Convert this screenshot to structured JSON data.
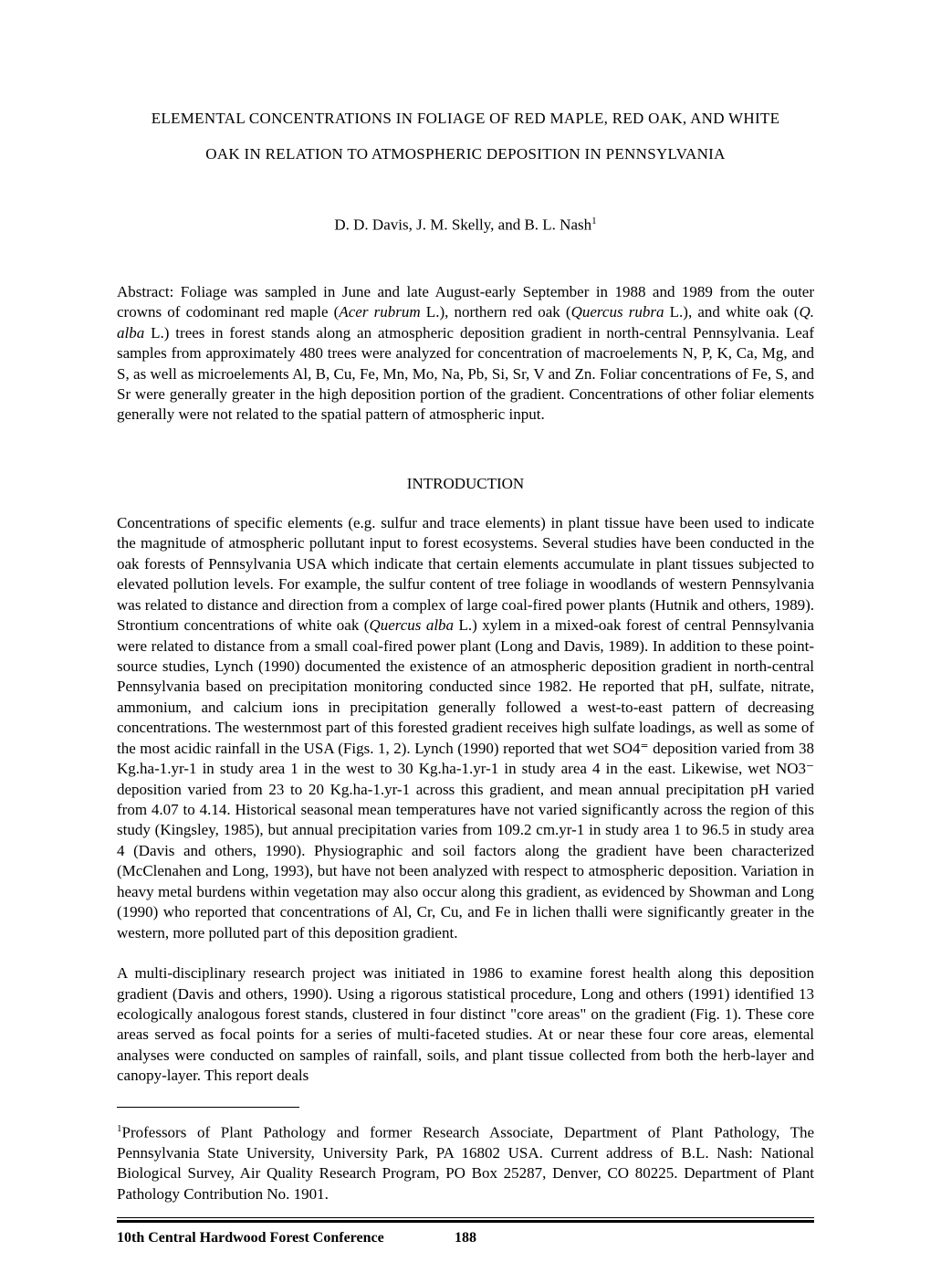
{
  "title": {
    "line1": "ELEMENTAL CONCENTRATIONS IN FOLIAGE OF RED MAPLE, RED OAK, AND WHITE",
    "line2": "OAK IN RELATION TO ATMOSPHERIC DEPOSITION IN PENNSYLVANIA"
  },
  "authors": {
    "text": "D. D. Davis, J. M. Skelly, and B. L. Nash",
    "sup": "1"
  },
  "abstract": {
    "label": "Abstract:",
    "pre_italic1": " Foliage was sampled in June and late August-early September in 1988 and 1989 from the outer crowns of codominant red maple (",
    "italic1": "Acer rubrum",
    "post_italic1": " L.), northern red oak (",
    "italic2": "Quercus rubra",
    "post_italic2": " L.), and white oak (",
    "italic3": "Q. alba",
    "post_italic3": " L.) trees in forest stands along an atmospheric deposition gradient in north-central Pennsylvania. Leaf samples from approximately 480 trees were analyzed for concentration of macroelements N, P, K, Ca, Mg, and S, as well as microelements Al, B, Cu, Fe, Mn, Mo, Na, Pb, Si, Sr, V and Zn. Foliar concentrations of Fe, S, and Sr were generally greater in the high deposition portion of the gradient. Concentrations of other foliar elements generally were not related to the spatial pattern of atmospheric input."
  },
  "section1": {
    "heading": "INTRODUCTION",
    "para1_a": "Concentrations of specific elements (e.g. sulfur and trace elements) in plant tissue have been used to indicate the magnitude of atmospheric pollutant input to forest ecosystems. Several studies have been conducted in the oak forests of Pennsylvania USA which indicate that certain elements accumulate in plant tissues subjected to elevated pollution levels. For example, the sulfur content of tree foliage in woodlands of western Pennsylvania was related to distance and direction from a complex of large coal-fired power plants (Hutnik and others, 1989). Strontium concentrations of white oak (",
    "para1_italic": "Quercus alba",
    "para1_b": " L.) xylem in a mixed-oak forest of central Pennsylvania were related to distance from a small coal-fired power plant (Long and Davis, 1989). In addition to these point-source studies, Lynch (1990) documented the existence of an atmospheric deposition gradient in north-central Pennsylvania based on precipitation monitoring conducted since 1982. He reported that pH, sulfate, nitrate, ammonium, and calcium ions in precipitation generally followed a west-to-east pattern of decreasing concentrations. The westernmost part of this forested gradient receives high sulfate loadings, as well as some of the most acidic rainfall in the USA (Figs. 1, 2). Lynch (1990) reported that wet SO4⁼ deposition varied from 38 Kg.ha-1.yr-1 in study area 1 in the west to 30 Kg.ha-1.yr-1 in study area 4 in the east. Likewise, wet NO3⁻ deposition varied from 23 to 20 Kg.ha-1.yr-1 across this gradient, and mean annual precipitation pH varied from 4.07 to 4.14. Historical seasonal mean temperatures have not varied significantly across the region of this study (Kingsley, 1985), but annual precipitation varies from 109.2 cm.yr-1 in study area 1 to 96.5 in study area 4 (Davis and others, 1990). Physiographic and soil factors along the gradient have been characterized (McClenahen and Long, 1993), but have not been analyzed with respect to atmospheric deposition. Variation in heavy metal burdens within vegetation may also occur along this gradient, as evidenced by Showman and Long (1990) who reported that concentrations of Al, Cr, Cu, and Fe in lichen thalli were significantly greater in the western, more polluted part of this deposition gradient.",
    "para2": "A multi-disciplinary research project was initiated in 1986 to examine forest health along this deposition gradient (Davis and others, 1990). Using a rigorous statistical procedure, Long and others (1991) identified 13 ecologically analogous forest stands, clustered in four distinct \"core areas\" on the gradient (Fig. 1). These core areas served as focal points for a series of multi-faceted studies. At or near these four core areas, elemental analyses were conducted on samples of rainfall, soils, and plant tissue collected from both the herb-layer and canopy-layer. This report deals"
  },
  "footnote": {
    "sup": "1",
    "text": "Professors of Plant Pathology and former Research Associate, Department of Plant Pathology, The Pennsylvania State University, University Park, PA 16802 USA. Current address of B.L. Nash: National Biological Survey, Air Quality Research Program, PO Box 25287, Denver, CO 80225. Department of Plant Pathology Contribution No. 1901."
  },
  "footer": {
    "conference": "10th Central Hardwood Forest Conference",
    "page": "188"
  }
}
